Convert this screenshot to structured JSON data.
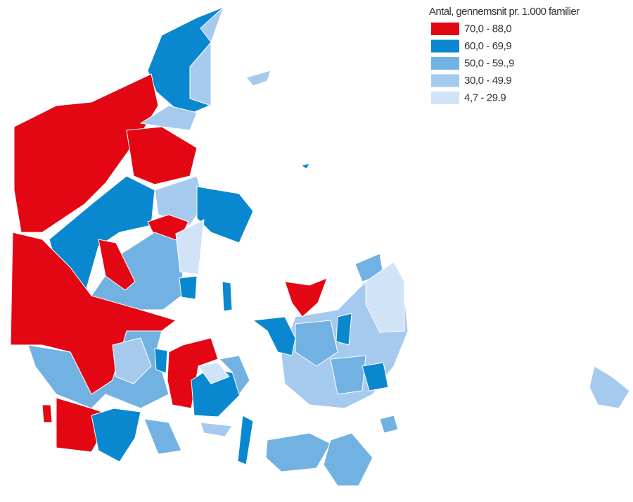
{
  "legend": {
    "title": "Antal, gennemsnit pr. 1.000 familier",
    "items": [
      {
        "label": "70,0 - 88,0",
        "color": "#e30613"
      },
      {
        "label": "60,0 - 69,9",
        "color": "#0a88cf"
      },
      {
        "label": "50,0 - 59.,9",
        "color": "#72b2e2"
      },
      {
        "label": "30,0 - 49.9",
        "color": "#a6caee"
      },
      {
        "label": "4,7 - 29.9",
        "color": "#d1e3f6"
      }
    ]
  }
}
